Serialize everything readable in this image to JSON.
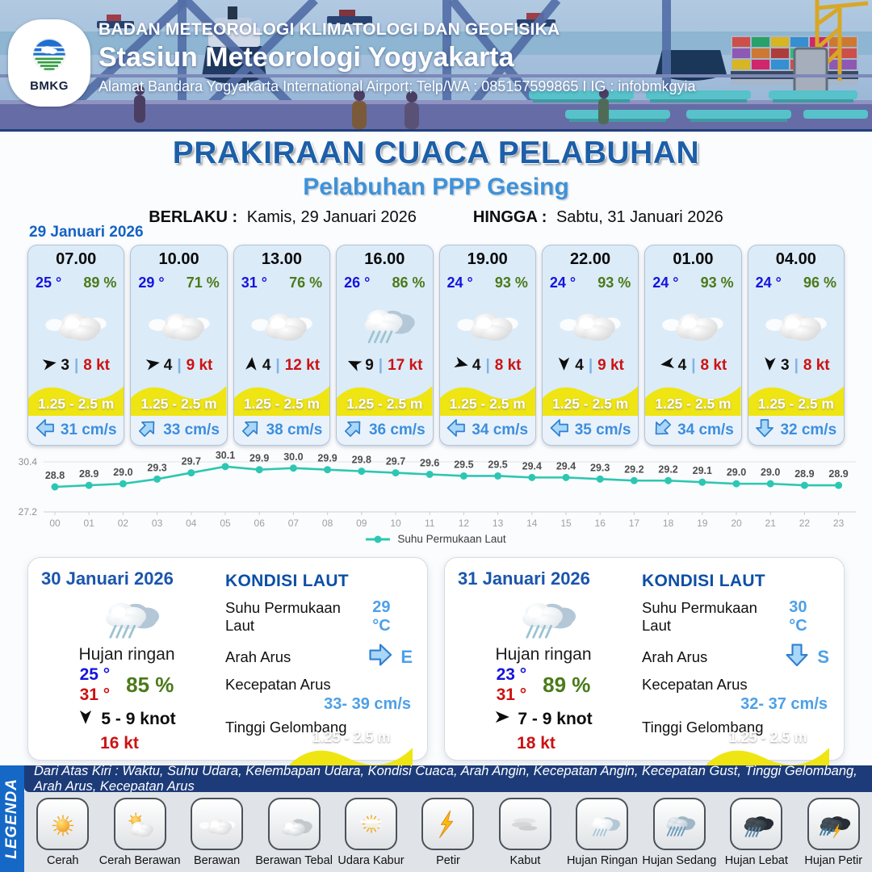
{
  "header": {
    "logo_text": "BMKG",
    "agency": "BADAN METEOROLOGI KLIMATOLOGI DAN GEOFISIKA",
    "station": "Stasiun Meteorologi Yogyakarta",
    "address": "Alamat Bandara Yogyakarta International Airport; Telp/WA : 085157599865 I IG : infobmkgyia"
  },
  "title": {
    "main": "PRAKIRAAN CUACA PELABUHAN",
    "subtitle": "Pelabuhan PPP Gesing",
    "berlaku_label": "BERLAKU :",
    "berlaku_value": "Kamis, 29 Januari 2026",
    "hingga_label": "HINGGA :",
    "hingga_value": "Sabtu, 31 Januari 2026"
  },
  "labels": {
    "wind_separator": "|"
  },
  "forecast": {
    "date": "29 Januari 2026",
    "cards": [
      {
        "time": "07.00",
        "temp": "25 °",
        "humidity": "89 %",
        "weather_icon": "berawan",
        "wind_dir_deg": 80,
        "wind_speed": "3",
        "gust": "8 kt",
        "wave": "1.25 - 2.5 m",
        "current_dir_deg": 270,
        "current_speed": "31 cm/s"
      },
      {
        "time": "10.00",
        "temp": "29 °",
        "humidity": "71 %",
        "weather_icon": "berawan",
        "wind_dir_deg": 80,
        "wind_speed": "4",
        "gust": "9 kt",
        "wave": "1.25 - 2.5 m",
        "current_dir_deg": 45,
        "current_speed": "33 cm/s"
      },
      {
        "time": "13.00",
        "temp": "31 °",
        "humidity": "76 %",
        "weather_icon": "berawan",
        "wind_dir_deg": 5,
        "wind_speed": "4",
        "gust": "12 kt",
        "wave": "1.25 - 2.5 m",
        "current_dir_deg": 45,
        "current_speed": "38 cm/s"
      },
      {
        "time": "16.00",
        "temp": "26 °",
        "humidity": "86 %",
        "weather_icon": "hujan-ringan",
        "wind_dir_deg": 295,
        "wind_speed": "9",
        "gust": "17 kt",
        "wave": "1.25 - 2.5 m",
        "current_dir_deg": 45,
        "current_speed": "36 cm/s"
      },
      {
        "time": "19.00",
        "temp": "24 °",
        "humidity": "93 %",
        "weather_icon": "berawan",
        "wind_dir_deg": 105,
        "wind_speed": "4",
        "gust": "8 kt",
        "wave": "1.25 - 2.5 m",
        "current_dir_deg": 270,
        "current_speed": "34 cm/s"
      },
      {
        "time": "22.00",
        "temp": "24 °",
        "humidity": "93 %",
        "weather_icon": "berawan",
        "wind_dir_deg": 180,
        "wind_speed": "4",
        "gust": "9 kt",
        "wave": "1.25 - 2.5 m",
        "current_dir_deg": 270,
        "current_speed": "35 cm/s"
      },
      {
        "time": "01.00",
        "temp": "24 °",
        "humidity": "93 %",
        "weather_icon": "berawan",
        "wind_dir_deg": 262,
        "wind_speed": "4",
        "gust": "8 kt",
        "wave": "1.25 - 2.5 m",
        "current_dir_deg": 225,
        "current_speed": "34 cm/s"
      },
      {
        "time": "04.00",
        "temp": "24 °",
        "humidity": "96 %",
        "weather_icon": "berawan",
        "wind_dir_deg": 183,
        "wind_speed": "3",
        "gust": "8 kt",
        "wave": "1.25 - 2.5 m",
        "current_dir_deg": 180,
        "current_speed": "32 cm/s"
      }
    ]
  },
  "chart_data": {
    "type": "line",
    "x": [
      "00",
      "01",
      "02",
      "03",
      "04",
      "05",
      "06",
      "07",
      "08",
      "09",
      "10",
      "11",
      "12",
      "13",
      "14",
      "15",
      "16",
      "17",
      "18",
      "19",
      "20",
      "21",
      "22",
      "23"
    ],
    "values": [
      28.8,
      28.9,
      29.0,
      29.3,
      29.7,
      30.1,
      29.9,
      30.0,
      29.9,
      29.8,
      29.7,
      29.6,
      29.5,
      29.5,
      29.4,
      29.4,
      29.3,
      29.2,
      29.2,
      29.1,
      29.0,
      29.0,
      28.9,
      28.9
    ],
    "ylim": [
      27.2,
      30.4
    ],
    "y_ticks": [
      "30.4",
      "27.2"
    ],
    "legend": "Suhu Permukaan Laut",
    "legend_position": "bottom",
    "grid": true,
    "line_color": "#2cc7b2",
    "title": "",
    "xlabel": "",
    "ylabel": ""
  },
  "days": [
    {
      "date": "30 Januari 2026",
      "weather_icon": "hujan-ringan",
      "weather_label": "Hujan ringan",
      "temp_min": "25 °",
      "temp_max": "31 °",
      "humidity": "85 %",
      "wind_dir_deg": 180,
      "wind_range": "5  - 9 knot",
      "gust": "16 kt",
      "sea": {
        "heading": "KONDISI LAUT",
        "sst_label": "Suhu Permukaan Laut",
        "sst_value": "29 °C",
        "current_dir_label": "Arah Arus",
        "current_dir_deg": 90,
        "current_dir_text": "E",
        "current_speed_label": "Kecepatan Arus",
        "current_speed_value": "33- 39 cm/s",
        "wave_label": "Tinggi Gelombang",
        "wave_value": "1.25 - 2.5 m"
      }
    },
    {
      "date": "31 Januari 2026",
      "weather_icon": "hujan-ringan",
      "weather_label": "Hujan ringan",
      "temp_min": "23 °",
      "temp_max": "31 °",
      "humidity": "89 %",
      "wind_dir_deg": 90,
      "wind_range": "7  - 9 knot",
      "gust": "18 kt",
      "sea": {
        "heading": "KONDISI LAUT",
        "sst_label": "Suhu Permukaan Laut",
        "sst_value": "30 °C",
        "current_dir_label": "Arah Arus",
        "current_dir_deg": 180,
        "current_dir_text": "S",
        "current_speed_label": "Kecepatan Arus",
        "current_speed_value": "32- 37 cm/s",
        "wave_label": "Tinggi Gelombang",
        "wave_value": "1.25 - 2.5 m"
      }
    }
  ],
  "legend": {
    "vertical_label": "LEGENDA",
    "description": "Dari Atas Kiri : Waktu, Suhu Udara, Kelembapan Udara, Kondisi Cuaca, Arah Angin, Kecepatan Angin, Kecepatan Gust, Tinggi Gelombang, Arah Arus, Kecepatan Arus",
    "items": [
      {
        "icon": "cerah",
        "label": "Cerah"
      },
      {
        "icon": "cerah-berawan",
        "label": "Cerah Berawan"
      },
      {
        "icon": "berawan",
        "label": "Berawan"
      },
      {
        "icon": "berawan-tebal",
        "label": "Berawan Tebal"
      },
      {
        "icon": "udara-kabur",
        "label": "Udara Kabur"
      },
      {
        "icon": "petir",
        "label": "Petir"
      },
      {
        "icon": "kabut",
        "label": "Kabut"
      },
      {
        "icon": "hujan-ringan",
        "label": "Hujan Ringan"
      },
      {
        "icon": "hujan-sedang",
        "label": "Hujan Sedang"
      },
      {
        "icon": "hujan-lebat",
        "label": "Hujan Lebat"
      },
      {
        "icon": "hujan-petir",
        "label": "Hujan Petir"
      }
    ]
  },
  "colors": {
    "wave_yellow": "#efe512",
    "title_blue": "#1d5fa8",
    "subtitle_blue": "#3e92d8",
    "temp_blue": "#1414dd",
    "humidity_green": "#4b7a1a",
    "gust_red": "#cc1212",
    "current_blue": "#3d8ede",
    "chart_teal": "#2cc7b2"
  }
}
